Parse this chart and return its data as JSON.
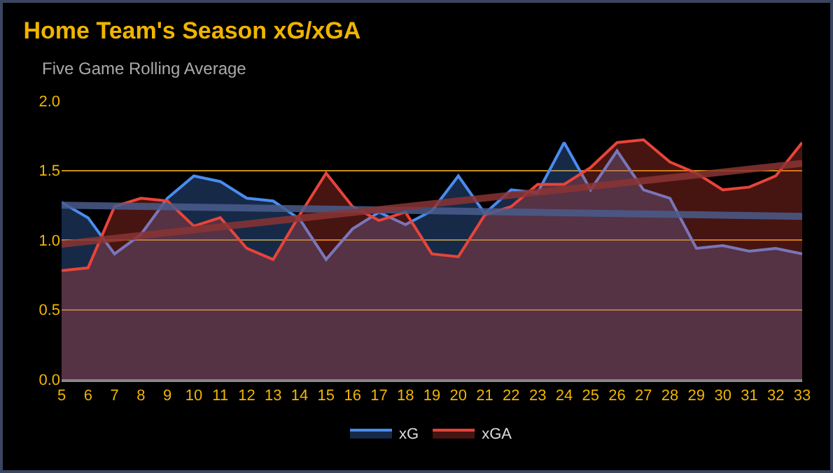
{
  "chart_data": {
    "type": "area",
    "title": "Home Team's Season xG/xGA",
    "subtitle": "Five Game Rolling Average",
    "x": [
      5,
      6,
      7,
      8,
      9,
      10,
      11,
      12,
      13,
      14,
      15,
      16,
      17,
      18,
      19,
      20,
      21,
      22,
      23,
      24,
      25,
      26,
      27,
      28,
      29,
      30,
      31,
      32,
      33
    ],
    "series": [
      {
        "name": "xG",
        "color": "#4a8cf0",
        "values": [
          1.27,
          1.16,
          0.9,
          1.04,
          1.3,
          1.46,
          1.42,
          1.3,
          1.28,
          1.15,
          0.86,
          1.08,
          1.2,
          1.11,
          1.21,
          1.46,
          1.19,
          1.36,
          1.34,
          1.7,
          1.36,
          1.64,
          1.36,
          1.3,
          0.94,
          0.96,
          0.92,
          0.94,
          0.9
        ]
      },
      {
        "name": "xGA",
        "color": "#e8443a",
        "values": [
          0.78,
          0.8,
          1.24,
          1.3,
          1.28,
          1.1,
          1.16,
          0.94,
          0.86,
          1.18,
          1.48,
          1.24,
          1.14,
          1.2,
          0.9,
          0.88,
          1.18,
          1.24,
          1.4,
          1.4,
          1.52,
          1.7,
          1.72,
          1.56,
          1.48,
          1.36,
          1.38,
          1.46,
          1.7
        ]
      },
      {
        "type": "line",
        "color": "#4a5c8c",
        "values": [
          1.25,
          null,
          null,
          null,
          null,
          null,
          null,
          null,
          null,
          null,
          null,
          null,
          null,
          null,
          null,
          null,
          null,
          null,
          null,
          null,
          null,
          null,
          null,
          null,
          null,
          null,
          null,
          null,
          1.17
        ]
      },
      {
        "type": "line",
        "color": "#8a3434",
        "values": [
          0.97,
          null,
          null,
          null,
          null,
          null,
          null,
          null,
          null,
          null,
          null,
          null,
          null,
          null,
          null,
          null,
          null,
          null,
          null,
          null,
          null,
          null,
          null,
          null,
          null,
          null,
          null,
          null,
          1.55
        ]
      }
    ],
    "xlim": [
      5,
      33
    ],
    "xticks": [
      5,
      6,
      7,
      8,
      9,
      10,
      11,
      12,
      13,
      14,
      15,
      16,
      17,
      18,
      19,
      20,
      21,
      22,
      23,
      24,
      25,
      26,
      27,
      28,
      29,
      30,
      31,
      32,
      33
    ],
    "ylim": [
      0,
      2
    ],
    "yticks": [
      {
        "value": 0,
        "label": "0.0"
      },
      {
        "value": 0.5,
        "label": "0.5"
      },
      {
        "value": 1,
        "label": "1.0"
      },
      {
        "value": 1.5,
        "label": "1.5"
      },
      {
        "value": 2,
        "label": "2.0"
      }
    ],
    "grid": "y",
    "legend": "bottom",
    "marker": "none"
  }
}
